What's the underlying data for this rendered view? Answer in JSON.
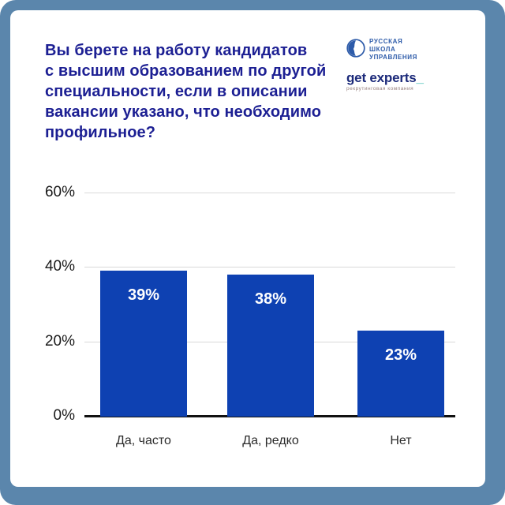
{
  "header": {
    "title_lines": [
      "Вы берете на работу кандидатов",
      "с высшим образованием по другой",
      "специальности, если в описании",
      "вакансии указано, что необходимо",
      "профильное?"
    ]
  },
  "logos": {
    "rshu": {
      "lines": [
        "РУССКАЯ",
        "ШКОЛА",
        "УПРАВЛЕНИЯ"
      ]
    },
    "get_experts": {
      "wordmark": "get experts",
      "underscore": "_",
      "tagline": "рекрутинговая компания"
    }
  },
  "chart_data": {
    "type": "bar",
    "title": "Вы берете на работу кандидатов с высшим образованием по другой специальности, если в описании вакансии указано, что необходимо профильное?",
    "categories": [
      "Да, часто",
      "Да, редко",
      "Нет"
    ],
    "values": [
      39,
      38,
      23
    ],
    "value_labels": [
      "39%",
      "38%",
      "23%"
    ],
    "y_ticks": [
      "60%",
      "40%",
      "20%",
      "0%"
    ],
    "y_tick_values": [
      60,
      40,
      20,
      0
    ],
    "ylim": [
      0,
      60
    ],
    "grid": true,
    "legend": "none",
    "xlabel": "",
    "ylabel": ""
  },
  "colors": {
    "frame": "#5b86ac",
    "card": "#ffffff",
    "title": "#1c1f93",
    "bar": "#0e41b2",
    "bar_value_text": "#ffffff",
    "gridline": "#d9d9d9",
    "baseline": "#111111",
    "axis_text": "#1a1a1a",
    "rshu_blue": "#2d5ba9",
    "getx_navy": "#1c2a7a",
    "getx_teal": "#2fb9ac",
    "getx_tagline": "#97807e"
  }
}
